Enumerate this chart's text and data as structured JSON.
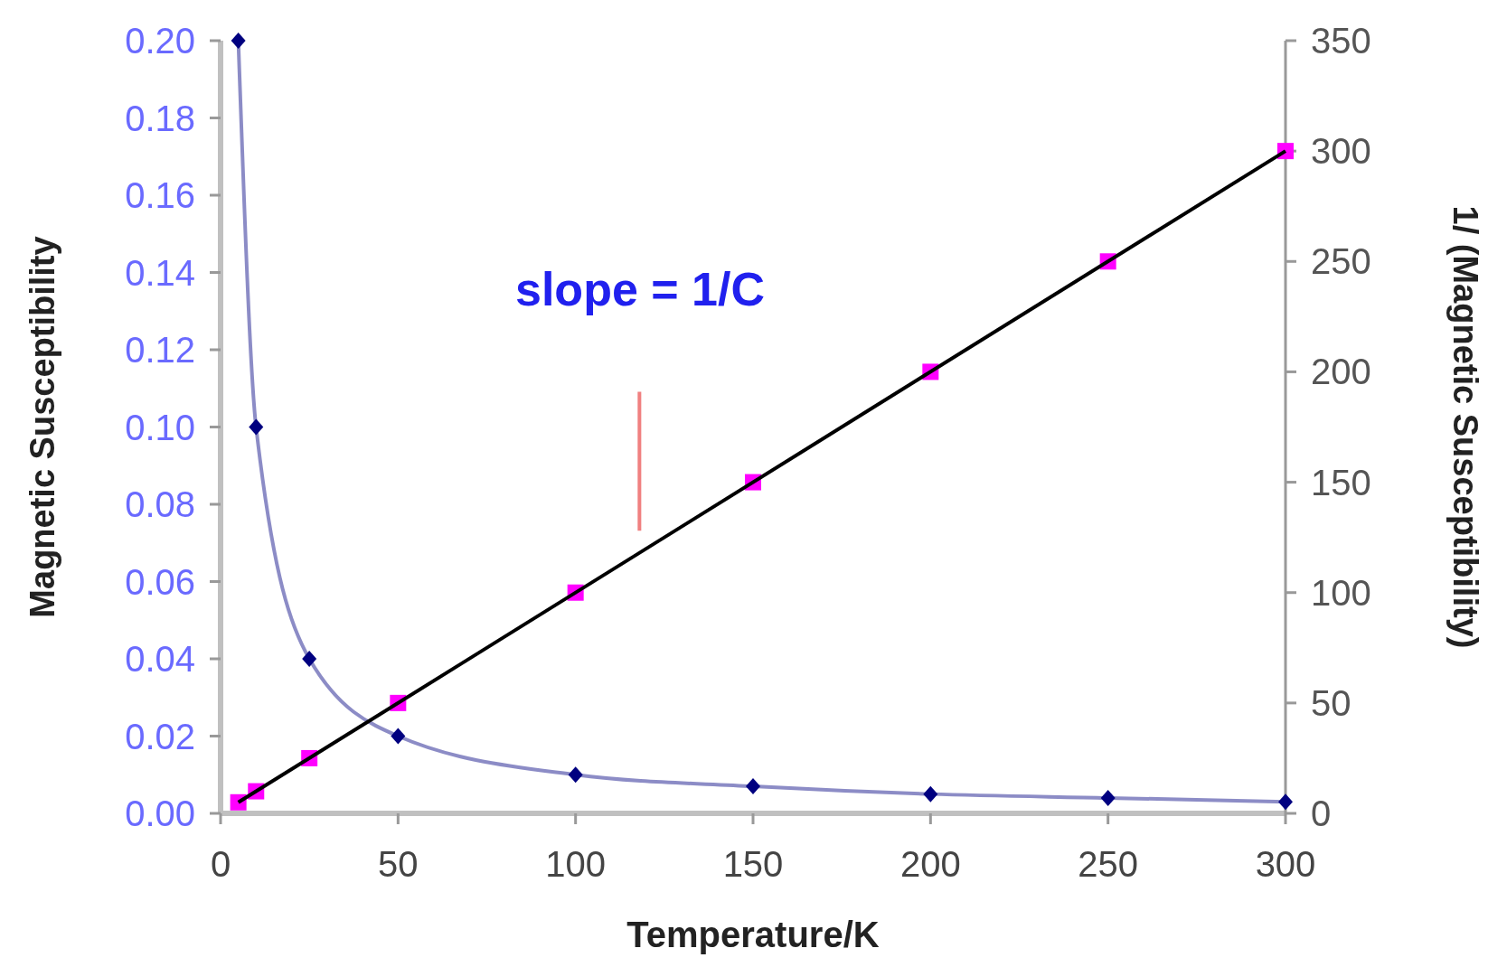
{
  "chart_data": {
    "type": "line",
    "xlabel": "Temperature/K",
    "ylabel": "Magnetic Susceptibility",
    "y2label": "1/ (Magnetic Susceptibility)",
    "xlim": [
      0,
      300
    ],
    "xticks": [
      0,
      50,
      100,
      150,
      200,
      250,
      300
    ],
    "ylim": [
      0,
      0.2
    ],
    "yticks": [
      {
        "value": 0,
        "label": "0.00"
      },
      {
        "value": 0.02,
        "label": "0.02"
      },
      {
        "value": 0.04,
        "label": "0.04"
      },
      {
        "value": 0.06,
        "label": "0.06"
      },
      {
        "value": 0.08,
        "label": "0.08"
      },
      {
        "value": 0.1,
        "label": "0.10"
      },
      {
        "value": 0.12,
        "label": "0.12"
      },
      {
        "value": 0.14,
        "label": "0.14"
      },
      {
        "value": 0.16,
        "label": "0.16"
      },
      {
        "value": 0.18,
        "label": "0.18"
      },
      {
        "value": 0.2,
        "label": "0.20"
      }
    ],
    "y2lim": [
      0,
      350
    ],
    "y2ticks": [
      0,
      50,
      100,
      150,
      200,
      250,
      300,
      350
    ],
    "x": [
      5,
      10,
      25,
      50,
      100,
      150,
      200,
      250,
      300
    ],
    "series": [
      {
        "color": "#000080",
        "marker": "diamond",
        "values": [
          0.2,
          0.1,
          0.04,
          0.02,
          0.01,
          0.007,
          0.005,
          0.004,
          0.003
        ]
      },
      {
        "type": "scatter",
        "axis": "y2",
        "color": "#ff00ff",
        "marker": "square",
        "values": [
          5,
          10,
          25,
          50,
          100,
          150,
          200,
          250,
          300
        ]
      },
      {
        "type": "line",
        "axis": "y2",
        "color": "#000000",
        "marker": "none",
        "x": [
          5,
          300
        ],
        "values": [
          5,
          300
        ]
      },
      {
        "type": "line",
        "axis": "y2",
        "color": "#f08080",
        "marker": "none",
        "x": [
          118,
          118
        ],
        "values": [
          191,
          128
        ]
      }
    ],
    "annotations": [
      "slope = 1/C"
    ],
    "grid": false
  }
}
